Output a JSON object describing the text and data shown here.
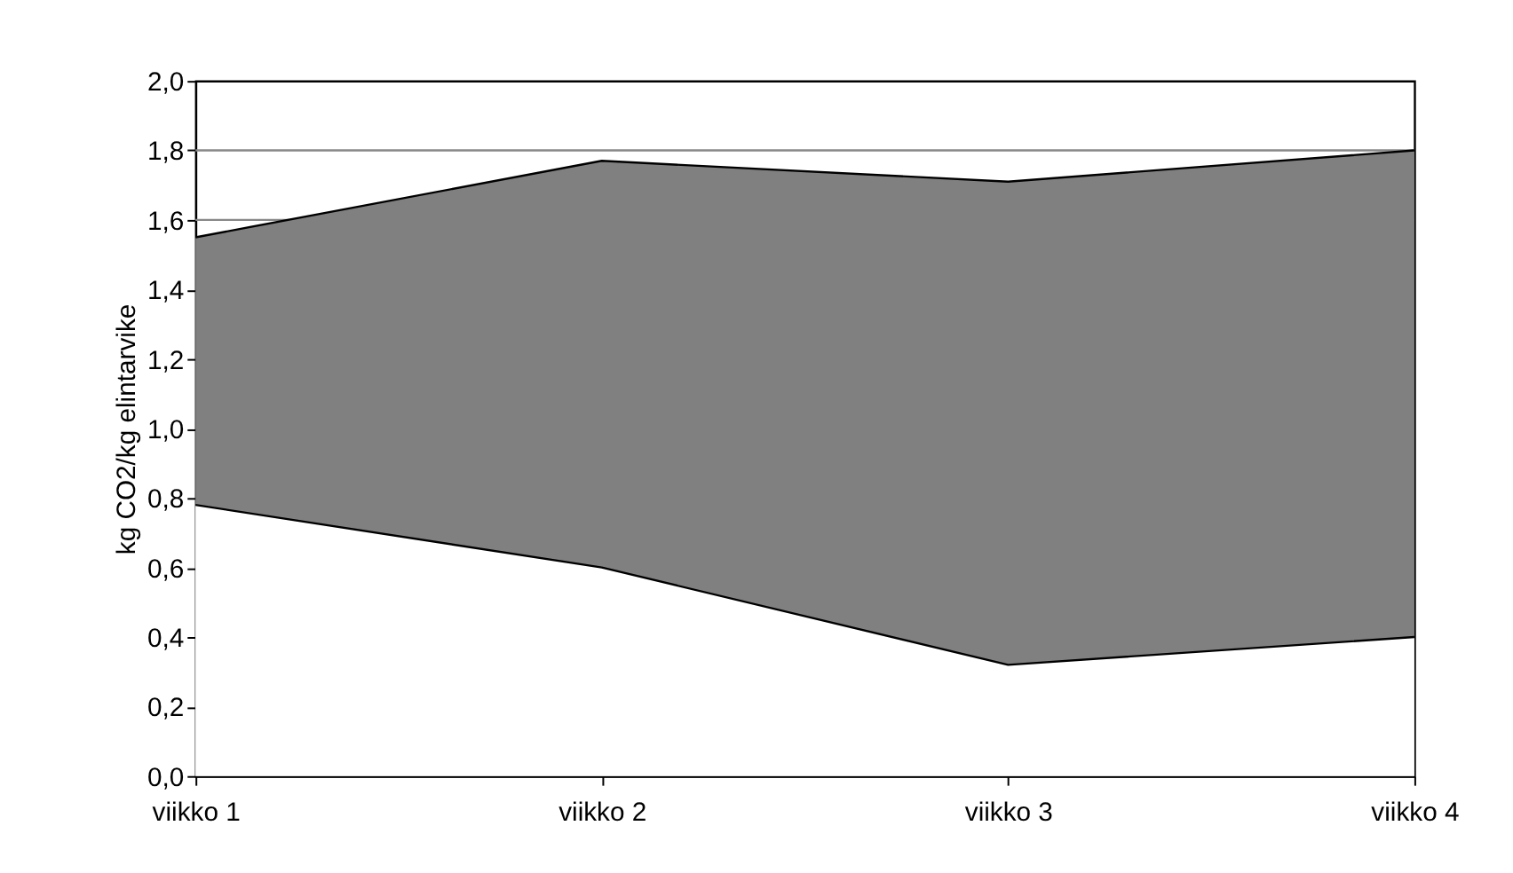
{
  "chart_data": {
    "type": "area",
    "ylabel": "kg CO2/kg elintarvike",
    "categories": [
      "viikko  1",
      "viikko 2",
      "viikko 3",
      "viikko 4"
    ],
    "series": [
      {
        "color": "#808080",
        "values": [
          1.55,
          1.77,
          1.71,
          1.8
        ]
      },
      {
        "color": "#ffffff",
        "values": [
          0.78,
          0.6,
          0.32,
          0.4
        ]
      }
    ],
    "ylim": [
      0,
      2
    ],
    "yticks": [
      {
        "value": 0,
        "label": "0,0"
      },
      {
        "value": 0.2,
        "label": "0,2"
      },
      {
        "value": 0.4,
        "label": "0,4"
      },
      {
        "value": 0.6,
        "label": "0,6"
      },
      {
        "value": 0.8,
        "label": "0,8"
      },
      {
        "value": 1.0,
        "label": "1,0"
      },
      {
        "value": 1.2,
        "label": "1,2"
      },
      {
        "value": 1.4,
        "label": "1,4"
      },
      {
        "value": 1.6,
        "label": "1,6"
      },
      {
        "value": 1.8,
        "label": "1,8"
      },
      {
        "value": 2.0,
        "label": "2,0"
      }
    ],
    "ref_lines": [
      {
        "axis": "y",
        "value": 1.6,
        "color": "#888888"
      },
      {
        "axis": "y",
        "value": 1.8,
        "color": "#888888"
      }
    ]
  }
}
